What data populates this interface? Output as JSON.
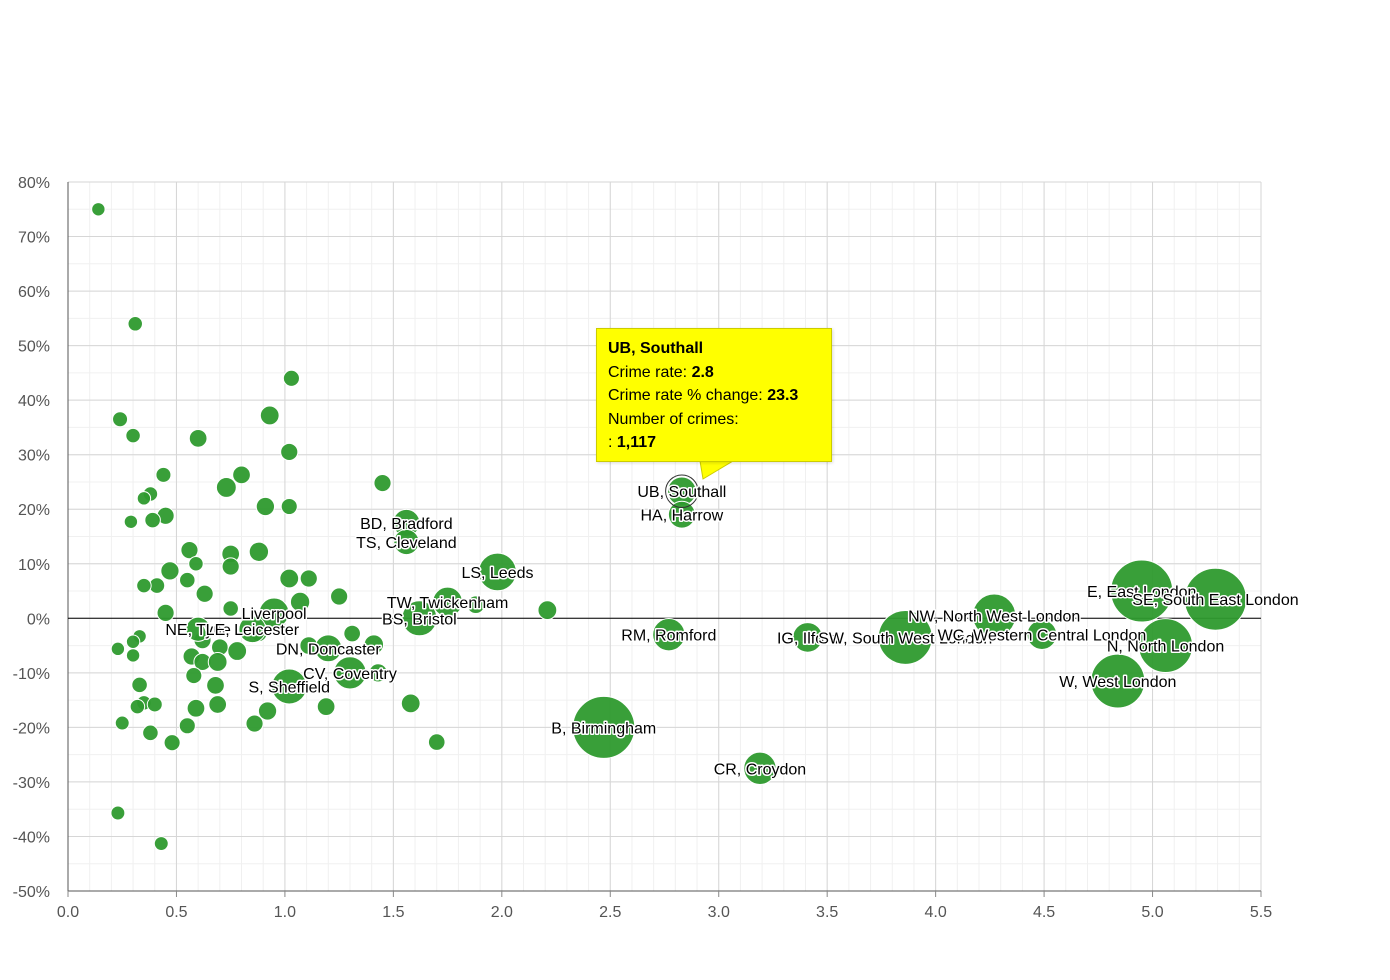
{
  "chart_data": {
    "type": "scatter",
    "title": "",
    "xlabel": "",
    "ylabel": "",
    "xlim": [
      0,
      5.5
    ],
    "ylim": [
      -50,
      80
    ],
    "x_ticks": [
      "0.0",
      "0.5",
      "1.0",
      "1.5",
      "2.0",
      "2.5",
      "3.0",
      "3.5",
      "4.0",
      "4.5",
      "5.0",
      "5.5"
    ],
    "y_ticks": [
      "80%",
      "70%",
      "60%",
      "50%",
      "40%",
      "30%",
      "20%",
      "10%",
      "0%",
      "-10%",
      "-20%",
      "-30%",
      "-40%",
      "-50%"
    ],
    "grid": true,
    "colors": {
      "bubble": "#2e9a2e",
      "tooltip_bg": "#ffff00"
    },
    "labelled_points": [
      {
        "label": "UB, Southall",
        "x": 2.83,
        "y": 23.3,
        "size": 0.38
      },
      {
        "label": "HA, Harrow",
        "x": 2.83,
        "y": 19.0,
        "size": 0.35
      },
      {
        "label": "BD, Bradford",
        "x": 1.56,
        "y": 17.5,
        "size": 0.35
      },
      {
        "label": "TS, Cleveland",
        "x": 1.56,
        "y": 14.0,
        "size": 0.32
      },
      {
        "label": "LS, Leeds",
        "x": 1.98,
        "y": 8.5,
        "size": 0.55
      },
      {
        "label": "TW, Twickenham",
        "x": 1.75,
        "y": 3.0,
        "size": 0.4
      },
      {
        "label": "BS, Bristol",
        "x": 1.62,
        "y": 0.0,
        "size": 0.5
      },
      {
        "label": "Liverpool",
        "x": 0.95,
        "y": 1.0,
        "size": 0.4
      },
      {
        "label": "NE, Tyne",
        "x": 0.6,
        "y": -2.0,
        "size": 0.3
      },
      {
        "label": "LE, Leicester",
        "x": 0.85,
        "y": -2.0,
        "size": 0.35
      },
      {
        "label": "DN, Doncaster",
        "x": 1.2,
        "y": -5.5,
        "size": 0.35
      },
      {
        "label": "CV, Coventry",
        "x": 1.3,
        "y": -10.0,
        "size": 0.45
      },
      {
        "label": "S, Sheffield",
        "x": 1.02,
        "y": -12.5,
        "size": 0.5
      },
      {
        "label": "B, Birmingham",
        "x": 2.47,
        "y": -20.0,
        "size": 1.0
      },
      {
        "label": "RM, Romford",
        "x": 2.77,
        "y": -3.0,
        "size": 0.45
      },
      {
        "label": "CR, Croydon",
        "x": 3.19,
        "y": -27.5,
        "size": 0.45
      },
      {
        "label": "IG, Ilford",
        "x": 3.41,
        "y": -3.5,
        "size": 0.4
      },
      {
        "label": "SW, South West London",
        "x": 3.86,
        "y": -3.5,
        "size": 0.85
      },
      {
        "label": "NW, North West London",
        "x": 4.27,
        "y": 0.5,
        "size": 0.65
      },
      {
        "label": "WC, Western Central London",
        "x": 4.49,
        "y": -3.0,
        "size": 0.4
      },
      {
        "label": "E, East London",
        "x": 4.95,
        "y": 5.0,
        "size": 1.0
      },
      {
        "label": "SE, South East London",
        "x": 5.29,
        "y": 3.5,
        "size": 1.0
      },
      {
        "label": "N, North London",
        "x": 5.06,
        "y": -5.0,
        "size": 0.85
      },
      {
        "label": "W, West London",
        "x": 4.84,
        "y": -11.5,
        "size": 0.85
      }
    ],
    "points": [
      {
        "x": 0.14,
        "y": 75.0,
        "size": 0.1
      },
      {
        "x": 0.31,
        "y": 54.0,
        "size": 0.12
      },
      {
        "x": 1.03,
        "y": 44.0,
        "size": 0.15
      },
      {
        "x": 0.24,
        "y": 36.5,
        "size": 0.13
      },
      {
        "x": 0.93,
        "y": 37.2,
        "size": 0.2
      },
      {
        "x": 0.3,
        "y": 33.5,
        "size": 0.12
      },
      {
        "x": 0.6,
        "y": 33.0,
        "size": 0.18
      },
      {
        "x": 1.02,
        "y": 30.5,
        "size": 0.17
      },
      {
        "x": 0.44,
        "y": 26.3,
        "size": 0.13
      },
      {
        "x": 0.8,
        "y": 26.3,
        "size": 0.18
      },
      {
        "x": 0.73,
        "y": 24.0,
        "size": 0.22
      },
      {
        "x": 1.45,
        "y": 24.8,
        "size": 0.17
      },
      {
        "x": 0.38,
        "y": 22.8,
        "size": 0.12
      },
      {
        "x": 0.35,
        "y": 22.0,
        "size": 0.1
      },
      {
        "x": 0.91,
        "y": 20.5,
        "size": 0.19
      },
      {
        "x": 1.02,
        "y": 20.5,
        "size": 0.15
      },
      {
        "x": 0.45,
        "y": 18.8,
        "size": 0.17
      },
      {
        "x": 0.39,
        "y": 18.0,
        "size": 0.14
      },
      {
        "x": 0.29,
        "y": 17.7,
        "size": 0.1
      },
      {
        "x": 0.56,
        "y": 12.5,
        "size": 0.17
      },
      {
        "x": 0.75,
        "y": 11.8,
        "size": 0.18
      },
      {
        "x": 0.88,
        "y": 12.2,
        "size": 0.21
      },
      {
        "x": 0.59,
        "y": 10.0,
        "size": 0.12
      },
      {
        "x": 0.75,
        "y": 9.5,
        "size": 0.17
      },
      {
        "x": 0.47,
        "y": 8.7,
        "size": 0.19
      },
      {
        "x": 1.02,
        "y": 7.3,
        "size": 0.2
      },
      {
        "x": 1.11,
        "y": 7.3,
        "size": 0.17
      },
      {
        "x": 0.55,
        "y": 7.0,
        "size": 0.14
      },
      {
        "x": 0.41,
        "y": 6.0,
        "size": 0.14
      },
      {
        "x": 0.35,
        "y": 6.0,
        "size": 0.12
      },
      {
        "x": 0.63,
        "y": 4.5,
        "size": 0.17
      },
      {
        "x": 1.25,
        "y": 4.0,
        "size": 0.17
      },
      {
        "x": 1.07,
        "y": 3.0,
        "size": 0.21
      },
      {
        "x": 1.88,
        "y": 2.5,
        "size": 0.18
      },
      {
        "x": 2.21,
        "y": 1.5,
        "size": 0.2
      },
      {
        "x": 0.45,
        "y": 1.0,
        "size": 0.17
      },
      {
        "x": 0.75,
        "y": 1.8,
        "size": 0.14
      },
      {
        "x": 0.33,
        "y": -3.3,
        "size": 0.1
      },
      {
        "x": 0.3,
        "y": -4.3,
        "size": 0.1
      },
      {
        "x": 0.23,
        "y": -5.6,
        "size": 0.1
      },
      {
        "x": 0.3,
        "y": -6.8,
        "size": 0.1
      },
      {
        "x": 0.62,
        "y": -4.0,
        "size": 0.17
      },
      {
        "x": 0.7,
        "y": -5.3,
        "size": 0.16
      },
      {
        "x": 0.78,
        "y": -6.0,
        "size": 0.2
      },
      {
        "x": 0.57,
        "y": -7.0,
        "size": 0.17
      },
      {
        "x": 0.62,
        "y": -8.0,
        "size": 0.17
      },
      {
        "x": 0.69,
        "y": -8.0,
        "size": 0.2
      },
      {
        "x": 1.11,
        "y": -5.0,
        "size": 0.18
      },
      {
        "x": 1.41,
        "y": -4.8,
        "size": 0.21
      },
      {
        "x": 1.31,
        "y": -2.8,
        "size": 0.16
      },
      {
        "x": 0.88,
        "y": -2.8,
        "size": 0.15
      },
      {
        "x": 1.43,
        "y": -10.0,
        "size": 0.19
      },
      {
        "x": 0.58,
        "y": -10.5,
        "size": 0.15
      },
      {
        "x": 0.68,
        "y": -12.3,
        "size": 0.18
      },
      {
        "x": 0.33,
        "y": -12.2,
        "size": 0.14
      },
      {
        "x": 0.35,
        "y": -15.5,
        "size": 0.12
      },
      {
        "x": 0.4,
        "y": -15.8,
        "size": 0.13
      },
      {
        "x": 0.32,
        "y": -16.2,
        "size": 0.12
      },
      {
        "x": 0.59,
        "y": -16.5,
        "size": 0.18
      },
      {
        "x": 0.69,
        "y": -15.8,
        "size": 0.18
      },
      {
        "x": 0.92,
        "y": -17.0,
        "size": 0.19
      },
      {
        "x": 1.19,
        "y": -16.2,
        "size": 0.18
      },
      {
        "x": 1.58,
        "y": -15.6,
        "size": 0.2
      },
      {
        "x": 0.25,
        "y": -19.2,
        "size": 0.11
      },
      {
        "x": 0.55,
        "y": -19.7,
        "size": 0.15
      },
      {
        "x": 0.86,
        "y": -19.3,
        "size": 0.17
      },
      {
        "x": 0.38,
        "y": -21.0,
        "size": 0.14
      },
      {
        "x": 0.48,
        "y": -22.8,
        "size": 0.15
      },
      {
        "x": 1.7,
        "y": -22.7,
        "size": 0.16
      },
      {
        "x": 0.23,
        "y": -35.7,
        "size": 0.11
      },
      {
        "x": 0.43,
        "y": -41.3,
        "size": 0.11
      }
    ],
    "tooltip": {
      "title": "UB, Southall",
      "rate_label": "Crime rate: ",
      "rate_value": "2.8",
      "change_label": "Crime rate % change: ",
      "change_value": "23.3",
      "count_label": "Number of crimes:",
      "count_prefix": ": ",
      "count_value": "1,117"
    }
  }
}
